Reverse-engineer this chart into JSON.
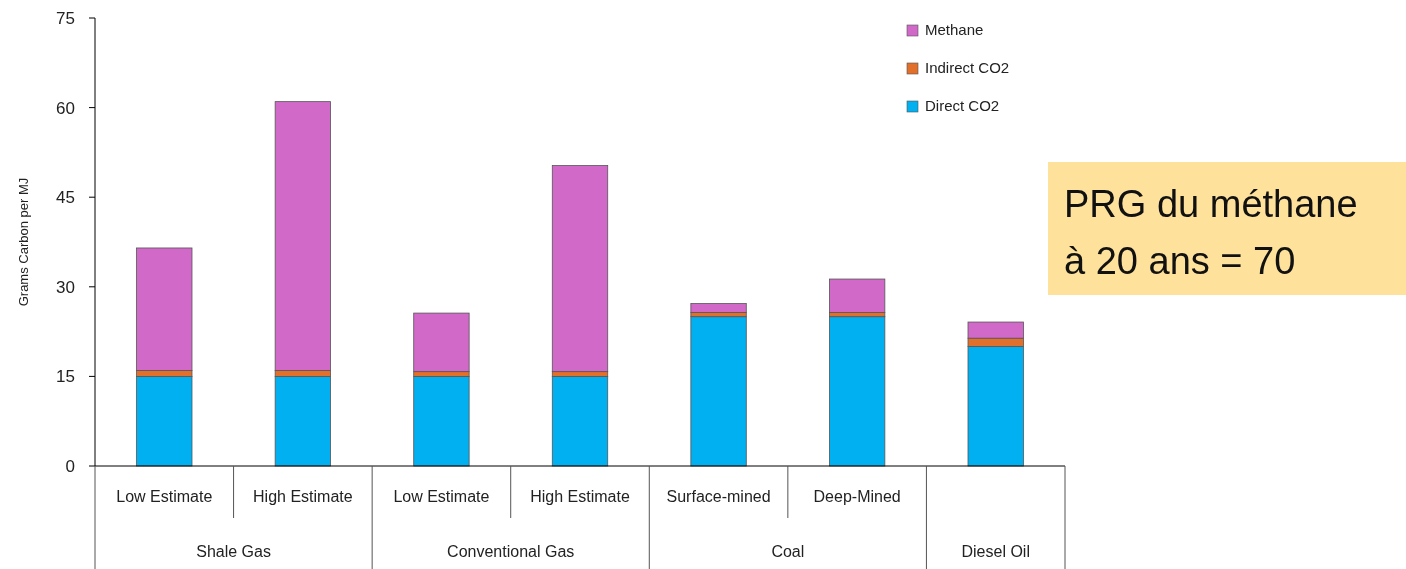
{
  "chart_data": {
    "type": "bar",
    "stacked": true,
    "ylabel": "Grams Carbon per MJ",
    "categories": [
      "Low Estimate",
      "High Estimate",
      "Low Estimate",
      "High Estimate",
      "Surface-mined",
      "Deep-Mined",
      null
    ],
    "series": [
      {
        "name": "Direct CO2",
        "color": "#00b0f0",
        "values": [
          15,
          15,
          15,
          15,
          25,
          25,
          20
        ]
      },
      {
        "name": "Indirect CO2",
        "color": "#e2702a",
        "values": [
          1,
          1,
          0.8,
          0.8,
          0.7,
          0.7,
          1.4
        ]
      },
      {
        "name": "Methane",
        "color": "#d169c9",
        "values": [
          20.5,
          45,
          9.8,
          34.5,
          1.5,
          5.6,
          2.7
        ]
      }
    ],
    "ylim": [
      0,
      75
    ],
    "yticks": [
      0,
      15,
      30,
      45,
      60,
      75
    ],
    "legend": "top right",
    "annotations": [
      "Shale Gas",
      "Conventional Gas",
      "Coal",
      "Diesel Oil",
      "PRG du méthane à 20 ans = 70"
    ]
  }
}
